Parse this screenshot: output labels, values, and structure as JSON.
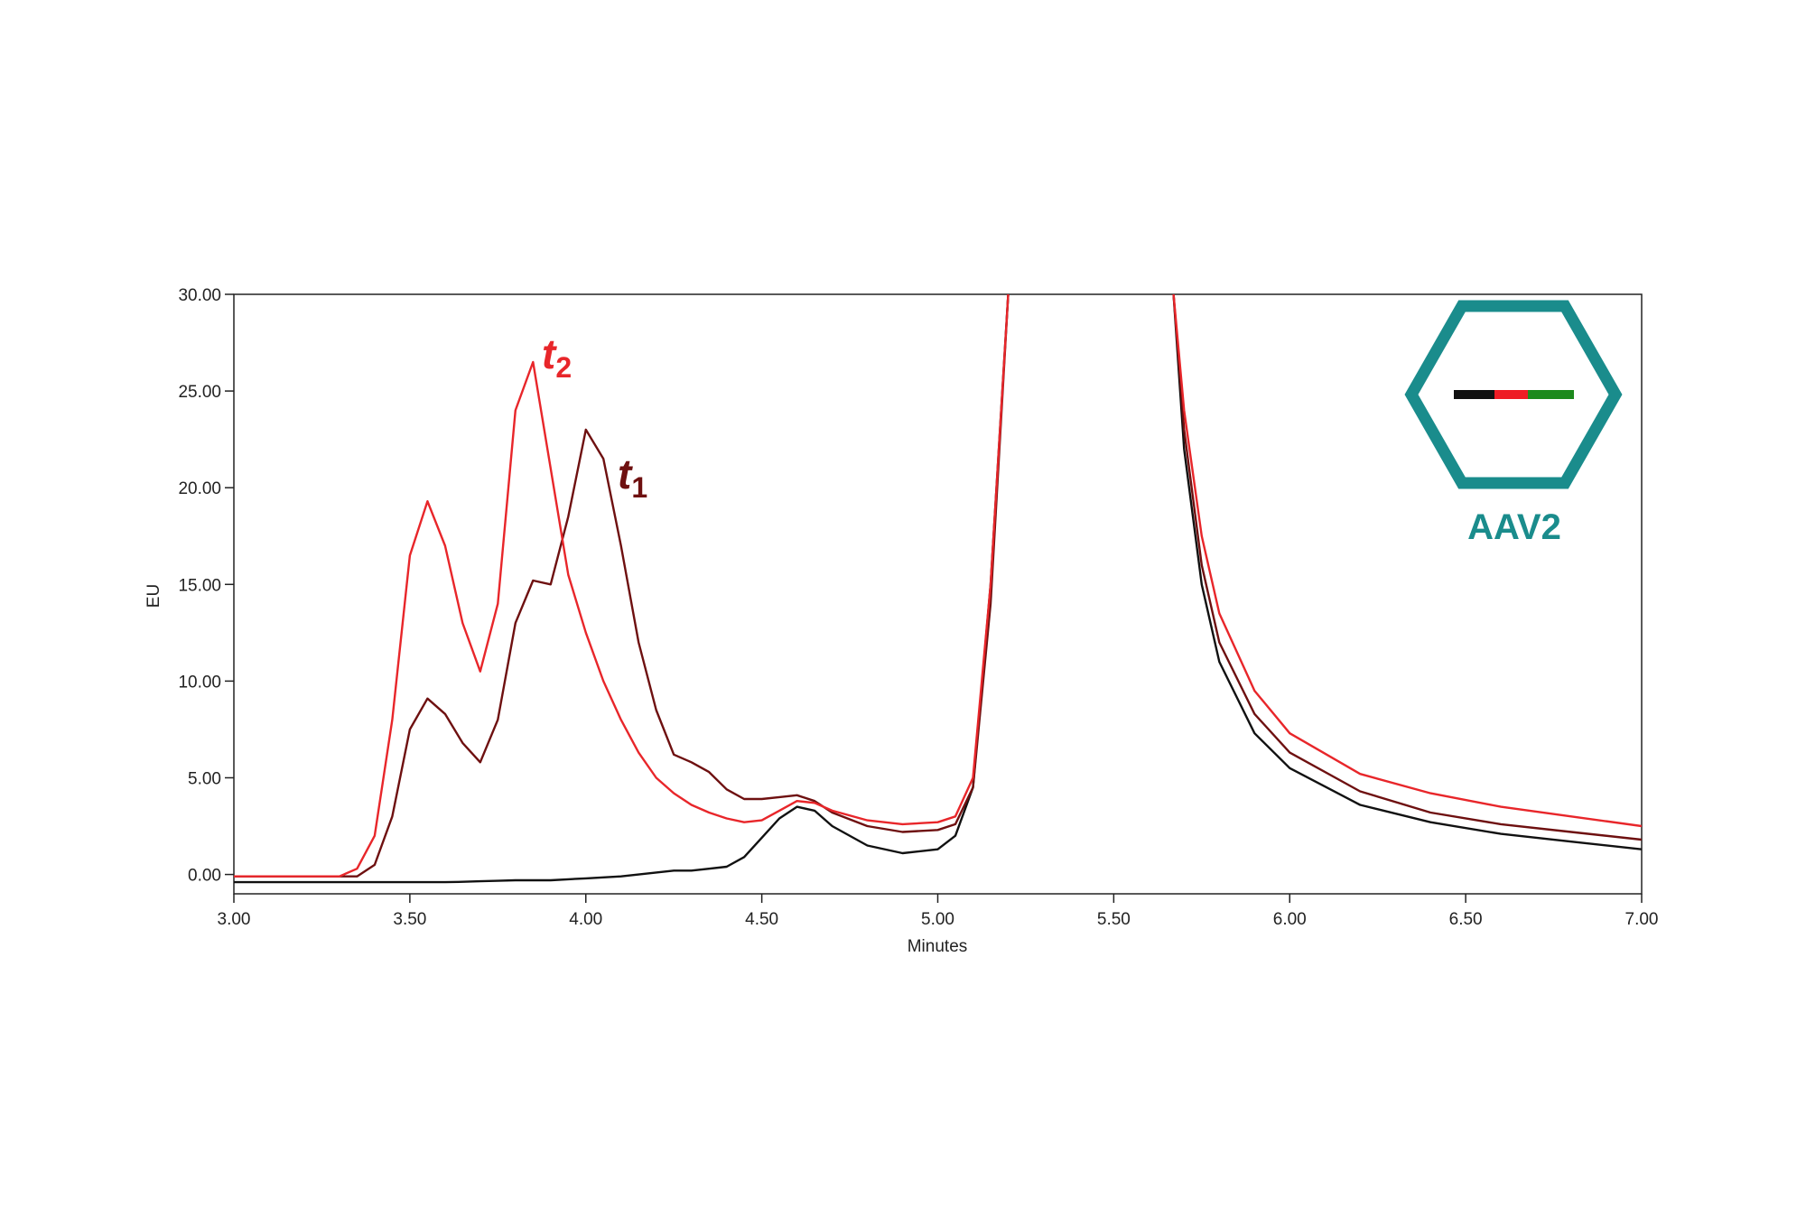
{
  "chart_data": {
    "type": "line",
    "xlabel": "Minutes",
    "ylabel": "EU",
    "x": [
      3.0,
      3.1,
      3.2,
      3.3,
      3.35,
      3.4,
      3.45,
      3.5,
      3.55,
      3.6,
      3.65,
      3.7,
      3.75,
      3.8,
      3.85,
      3.9,
      3.95,
      4.0,
      4.05,
      4.1,
      4.15,
      4.2,
      4.25,
      4.3,
      4.35,
      4.4,
      4.45,
      4.5,
      4.55,
      4.6,
      4.65,
      4.7,
      4.8,
      4.9,
      5.0,
      5.05,
      5.1,
      5.15,
      5.2,
      5.4,
      5.67,
      5.7,
      5.75,
      5.8,
      5.9,
      6.0,
      6.2,
      6.4,
      6.6,
      6.8,
      7.0
    ],
    "series": [
      {
        "color": "#111111",
        "values": [
          -0.4,
          -0.4,
          -0.4,
          -0.4,
          -0.4,
          -0.4,
          -0.4,
          -0.4,
          -0.4,
          -0.4,
          -0.38,
          -0.35,
          -0.33,
          -0.3,
          -0.3,
          -0.3,
          -0.25,
          -0.2,
          -0.15,
          -0.1,
          0,
          0.1,
          0.2,
          0.2,
          0.3,
          0.4,
          0.9,
          1.9,
          2.9,
          3.5,
          3.3,
          2.5,
          1.5,
          1.1,
          1.3,
          2,
          4.5,
          15,
          30,
          null,
          30,
          22,
          15,
          11,
          7.3,
          5.5,
          3.6,
          2.7,
          2.1,
          1.7,
          1.3
        ]
      },
      {
        "color": "#6e1010",
        "values": [
          -0.1,
          -0.1,
          -0.1,
          -0.1,
          -0.1,
          0.5,
          3,
          7.5,
          9.1,
          8.3,
          6.8,
          5.8,
          8,
          13,
          15.2,
          15,
          18.5,
          23,
          21.5,
          17,
          12,
          8.5,
          6.2,
          5.8,
          5.3,
          4.4,
          3.9,
          3.9,
          4,
          4.1,
          3.8,
          3.2,
          2.5,
          2.2,
          2.3,
          2.6,
          4.5,
          14,
          30,
          null,
          30,
          23,
          16,
          12,
          8.3,
          6.3,
          4.3,
          3.2,
          2.6,
          2.2,
          1.8
        ]
      },
      {
        "color": "#e8262a",
        "values": [
          -0.1,
          -0.1,
          -0.1,
          -0.1,
          0.3,
          2,
          8,
          16.5,
          19.3,
          17,
          13,
          10.5,
          14,
          24,
          26.5,
          21,
          15.5,
          12.5,
          10,
          8,
          6.3,
          5,
          4.2,
          3.6,
          3.2,
          2.9,
          2.7,
          2.8,
          3.3,
          3.8,
          3.7,
          3.3,
          2.8,
          2.6,
          2.7,
          3,
          5,
          15,
          30,
          null,
          30,
          24,
          17.5,
          13.5,
          9.5,
          7.3,
          5.2,
          4.2,
          3.5,
          3,
          2.5
        ]
      }
    ],
    "xlim": [
      3,
      7
    ],
    "ylim": [
      -1,
      30
    ],
    "xticks": [
      {
        "value": 3,
        "label": "3.00"
      },
      {
        "value": 3.5,
        "label": "3.50"
      },
      {
        "value": 4,
        "label": "4.00"
      },
      {
        "value": 4.5,
        "label": "4.50"
      },
      {
        "value": 5,
        "label": "5.00"
      },
      {
        "value": 5.5,
        "label": "5.50"
      },
      {
        "value": 6,
        "label": "6.00"
      },
      {
        "value": 6.5,
        "label": "6.50"
      },
      {
        "value": 7,
        "label": "7.00"
      }
    ],
    "yticks": [
      {
        "value": 0,
        "label": "0.00"
      },
      {
        "value": 5,
        "label": "5.00"
      },
      {
        "value": 10,
        "label": "10.00"
      },
      {
        "value": 15,
        "label": "15.00"
      },
      {
        "value": 20,
        "label": "20.00"
      },
      {
        "value": 25,
        "label": "25.00"
      },
      {
        "value": 30,
        "label": "30.00"
      }
    ],
    "annotations": [
      {
        "text": "t",
        "subscript": "2",
        "color": "#e8262a"
      },
      {
        "text": "t",
        "subscript": "1",
        "color": "#6e1010"
      }
    ]
  },
  "logo": {
    "text": "AAV2",
    "color": "#1a8c8c"
  }
}
